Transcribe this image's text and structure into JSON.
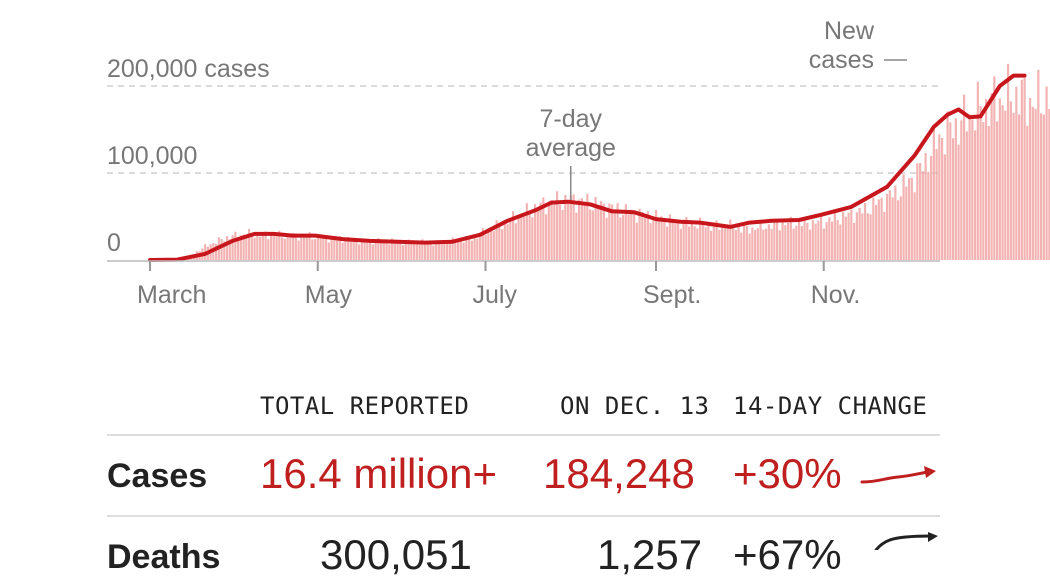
{
  "chart_data": {
    "type": "bar",
    "title": "",
    "xlabel": "",
    "ylabel": "",
    "ylim": [
      0,
      200000
    ],
    "y_ticks": [
      {
        "value": 200000,
        "label": "200,000 cases"
      },
      {
        "value": 100000,
        "label": "100,000"
      },
      {
        "value": 0,
        "label": "0"
      }
    ],
    "x_ticks": [
      "March",
      "May",
      "July",
      "Sept.",
      "Nov."
    ],
    "x_tick_days": [
      0,
      61,
      122,
      184,
      245
    ],
    "x_start": "2020-03-01",
    "grid": true,
    "series": [
      {
        "name": "New cases",
        "kind": "bars",
        "color": "#f2a6a6",
        "points": [
          [
            0,
            100
          ],
          [
            7,
            500
          ],
          [
            14,
            4000
          ],
          [
            21,
            17000
          ],
          [
            28,
            26000
          ],
          [
            35,
            30000
          ],
          [
            42,
            29000
          ],
          [
            49,
            28000
          ],
          [
            56,
            28000
          ],
          [
            63,
            26000
          ],
          [
            70,
            24000
          ],
          [
            77,
            22000
          ],
          [
            84,
            22000
          ],
          [
            91,
            21000
          ],
          [
            98,
            20000
          ],
          [
            105,
            20000
          ],
          [
            112,
            22000
          ],
          [
            119,
            27000
          ],
          [
            126,
            39000
          ],
          [
            133,
            49000
          ],
          [
            140,
            60000
          ],
          [
            147,
            67000
          ],
          [
            154,
            69000
          ],
          [
            161,
            65000
          ],
          [
            168,
            60000
          ],
          [
            175,
            54000
          ],
          [
            182,
            51000
          ],
          [
            189,
            45000
          ],
          [
            196,
            42000
          ],
          [
            203,
            40000
          ],
          [
            210,
            39000
          ],
          [
            217,
            35000
          ],
          [
            224,
            39000
          ],
          [
            231,
            42000
          ],
          [
            238,
            42000
          ],
          [
            245,
            44000
          ],
          [
            252,
            50000
          ],
          [
            259,
            56000
          ],
          [
            266,
            68000
          ],
          [
            273,
            81000
          ],
          [
            280,
            103000
          ],
          [
            287,
            141000
          ],
          [
            294,
            156000
          ],
          [
            301,
            172000
          ],
          [
            308,
            183000
          ],
          [
            315,
            190000
          ],
          [
            322,
            180000
          ],
          [
            327,
            190000
          ]
        ]
      },
      {
        "name": "7-day average",
        "kind": "line",
        "color": "#c8161d",
        "points": [
          [
            0,
            0
          ],
          [
            10,
            500
          ],
          [
            20,
            7000
          ],
          [
            30,
            22000
          ],
          [
            38,
            30000
          ],
          [
            45,
            30000
          ],
          [
            52,
            28000
          ],
          [
            60,
            28000
          ],
          [
            70,
            24000
          ],
          [
            80,
            22000
          ],
          [
            90,
            21000
          ],
          [
            100,
            20000
          ],
          [
            110,
            21000
          ],
          [
            120,
            29000
          ],
          [
            130,
            45000
          ],
          [
            140,
            57000
          ],
          [
            146,
            66000
          ],
          [
            152,
            67000
          ],
          [
            160,
            64000
          ],
          [
            168,
            56000
          ],
          [
            176,
            55000
          ],
          [
            184,
            47000
          ],
          [
            193,
            44000
          ],
          [
            200,
            43000
          ],
          [
            211,
            38000
          ],
          [
            218,
            43000
          ],
          [
            226,
            45000
          ],
          [
            236,
            46000
          ],
          [
            244,
            52000
          ],
          [
            255,
            61000
          ],
          [
            268,
            84000
          ],
          [
            278,
            120000
          ],
          [
            285,
            153000
          ],
          [
            290,
            167000
          ],
          [
            294,
            173000
          ],
          [
            298,
            164000
          ],
          [
            302,
            165000
          ],
          [
            309,
            200000
          ],
          [
            314,
            212000
          ],
          [
            318,
            212000
          ]
        ]
      }
    ],
    "annotations": [
      {
        "text_lines": [
          "7-day",
          "average"
        ],
        "day": 153
      },
      {
        "text_lines": [
          "New",
          "cases"
        ],
        "day": 317
      }
    ]
  },
  "table": {
    "headers": [
      "TOTAL REPORTED",
      "ON DEC. 13",
      "14-DAY CHANGE"
    ],
    "rows": [
      {
        "label": "Cases",
        "total": "16.4 million+",
        "on_date": "184,248",
        "change": "+30%"
      },
      {
        "label": "Deaths",
        "total": "300,051",
        "on_date": "1,257",
        "change": "+67%"
      }
    ]
  },
  "colors": {
    "accent": "#c01f1f",
    "bar": "#f2a6a6",
    "text": "#222222",
    "muted": "#777777"
  }
}
